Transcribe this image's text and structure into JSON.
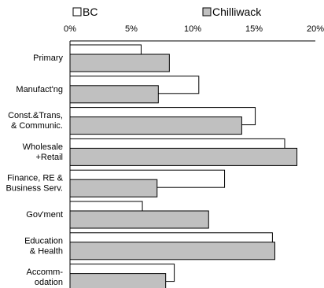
{
  "chart_data": {
    "type": "bar",
    "orientation": "horizontal",
    "categories": [
      [
        "Primary"
      ],
      [
        "Manufact'ng"
      ],
      [
        "Const.&Trans,",
        "& Communic."
      ],
      [
        "Wholesale",
        "+Retail"
      ],
      [
        "Finance, RE &",
        "Business Serv."
      ],
      [
        "Gov'ment"
      ],
      [
        "Education",
        "& Health"
      ],
      [
        "Accomm-",
        "odation"
      ]
    ],
    "series": [
      {
        "name": "BC",
        "color": "#ffffff",
        "values": [
          5.8,
          10.5,
          15.1,
          17.5,
          12.6,
          5.9,
          16.5,
          8.5
        ]
      },
      {
        "name": "Chilliwack",
        "color": "#c0c0c0",
        "values": [
          8.1,
          7.2,
          14.0,
          18.5,
          7.1,
          11.3,
          16.7,
          7.8
        ]
      }
    ],
    "xlim": [
      0,
      20
    ],
    "xticks": [
      "0%",
      "5%",
      "10%",
      "15%",
      "20%"
    ],
    "legend_position": "top",
    "grid": false
  }
}
